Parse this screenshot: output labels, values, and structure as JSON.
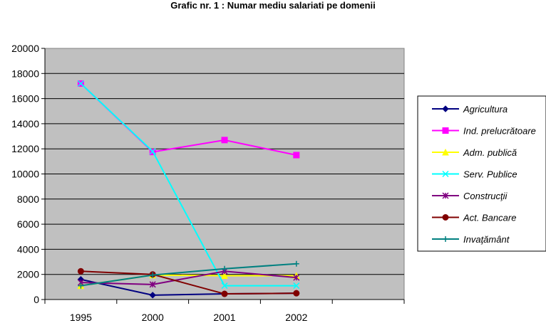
{
  "chart_data": {
    "type": "line",
    "title": "Grafic nr. 1 : Numar mediu salariati pe domenii",
    "xlabel": "",
    "ylabel": "",
    "categories": [
      "1995",
      "2000",
      "2001",
      "2002"
    ],
    "ylim": [
      0,
      20000
    ],
    "yticks": [
      0,
      2000,
      4000,
      6000,
      8000,
      10000,
      12000,
      14000,
      16000,
      18000,
      20000
    ],
    "grid": true,
    "plot_background": "#c0c0c0",
    "legend_position": "right",
    "series": [
      {
        "name": "Agricultura",
        "color": "#000080",
        "marker": "diamond",
        "values": [
          1600,
          350,
          450,
          500
        ]
      },
      {
        "name": "Ind. prelucrătoare",
        "color": "#ff00ff",
        "marker": "square",
        "values": [
          17200,
          11750,
          12700,
          11500
        ]
      },
      {
        "name": "Adm. publică",
        "color": "#ffff00",
        "marker": "triangle",
        "values": [
          1100,
          1950,
          1900,
          1900
        ]
      },
      {
        "name": "Serv. Publice",
        "color": "#00ffff",
        "marker": "x",
        "values": [
          17200,
          11800,
          1100,
          1100
        ]
      },
      {
        "name": "Construcţii",
        "color": "#800080",
        "marker": "star",
        "values": [
          1350,
          1200,
          2250,
          1750
        ]
      },
      {
        "name": "Act. Bancare",
        "color": "#800000",
        "marker": "circle",
        "values": [
          2250,
          2000,
          450,
          500
        ]
      },
      {
        "name": "Invaţământ",
        "color": "#008080",
        "marker": "plus",
        "values": [
          1100,
          1950,
          2450,
          2850
        ]
      }
    ]
  }
}
